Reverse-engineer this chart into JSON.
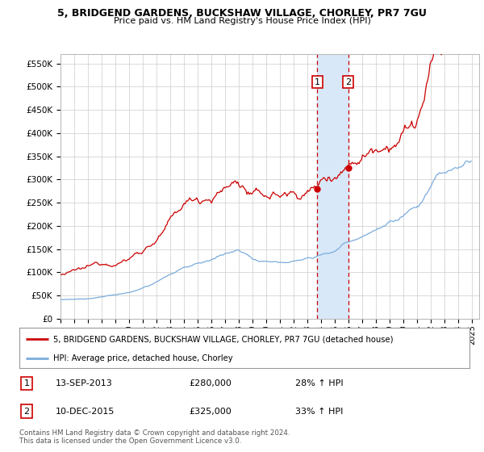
{
  "title": "5, BRIDGEND GARDENS, BUCKSHAW VILLAGE, CHORLEY, PR7 7GU",
  "subtitle": "Price paid vs. HM Land Registry's House Price Index (HPI)",
  "red_label": "5, BRIDGEND GARDENS, BUCKSHAW VILLAGE, CHORLEY, PR7 7GU (detached house)",
  "blue_label": "HPI: Average price, detached house, Chorley",
  "transaction1_date": "13-SEP-2013",
  "transaction1_price": 280000,
  "transaction1_hpi": "28% ↑ HPI",
  "transaction2_date": "10-DEC-2015",
  "transaction2_price": 325000,
  "transaction2_hpi": "33% ↑ HPI",
  "ylim_max": 570000,
  "xlim_start": 1995.0,
  "xlim_end": 2025.5,
  "copyright": "Contains HM Land Registry data © Crown copyright and database right 2024.\nThis data is licensed under the Open Government Licence v3.0.",
  "red_color": "#cc0000",
  "blue_color": "#7aacdc",
  "shade_color": "#d8e8f8",
  "marker_border_color": "#cc0000",
  "background_color": "#ffffff",
  "grid_color": "#cccccc"
}
